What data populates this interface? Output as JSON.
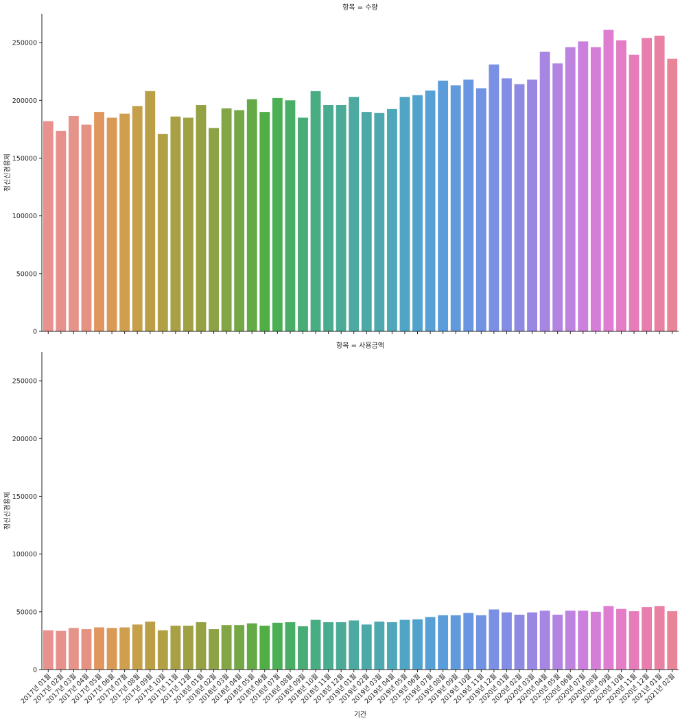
{
  "chart_data": {
    "type": "bar",
    "xlabel": "기간",
    "ylabel": "정신신경용제",
    "ylim": [
      0,
      275000
    ],
    "yticks": [
      0,
      50000,
      100000,
      150000,
      200000,
      250000
    ],
    "grid": false,
    "legend": "none",
    "categories": [
      "2017년 01월",
      "2017년 02월",
      "2017년 03월",
      "2017년 04월",
      "2017년 05월",
      "2017년 06월",
      "2017년 07월",
      "2017년 08월",
      "2017년 09월",
      "2017년 10월",
      "2017년 11월",
      "2017년 12월",
      "2018년 01월",
      "2018년 02월",
      "2018년 03월",
      "2018년 04월",
      "2018년 05월",
      "2018년 06월",
      "2018년 07월",
      "2018년 08월",
      "2018년 09월",
      "2018년 10월",
      "2018년 11월",
      "2018년 12월",
      "2019년 01월",
      "2019년 02월",
      "2019년 03월",
      "2019년 04월",
      "2019년 05월",
      "2019년 06월",
      "2019년 07월",
      "2019년 08월",
      "2019년 09월",
      "2019년 10월",
      "2019년 11월",
      "2019년 12월",
      "2020년 01월",
      "2020년 02월",
      "2020년 03월",
      "2020년 04월",
      "2020년 05월",
      "2020년 06월",
      "2020년 07월",
      "2020년 08월",
      "2020년 09월",
      "2020년 10월",
      "2020년 11월",
      "2020년 12월",
      "2021년 01월",
      "2021년 02월"
    ],
    "panels": [
      {
        "title": "항목 = 수량",
        "values": [
          182000,
          173500,
          186500,
          179000,
          190000,
          185000,
          188500,
          195000,
          208000,
          171000,
          186000,
          185000,
          196000,
          176000,
          193000,
          191500,
          201000,
          190000,
          202000,
          200000,
          185000,
          208000,
          196000,
          196000,
          203000,
          190000,
          189000,
          192500,
          203000,
          204500,
          208500,
          217000,
          213000,
          218000,
          210500,
          231000,
          219000,
          214000,
          218000,
          242000,
          232000,
          246000,
          251000,
          246000,
          261000,
          252000,
          239500,
          254000,
          256000,
          236000
        ]
      },
      {
        "title": "항목 = 사용금액",
        "values": [
          34000,
          33500,
          36000,
          35000,
          36500,
          36000,
          36500,
          39000,
          41500,
          34000,
          38000,
          38000,
          41000,
          35000,
          38500,
          38500,
          40000,
          38000,
          40500,
          41000,
          37500,
          43000,
          41000,
          41000,
          42500,
          39000,
          41500,
          41000,
          43000,
          43500,
          45500,
          47000,
          47000,
          49000,
          47000,
          52000,
          49500,
          47500,
          49500,
          51000,
          47500,
          51000,
          51000,
          50000,
          55000,
          52500,
          50500,
          54000,
          55000,
          50500
        ]
      }
    ],
    "colors": [
      "#e8918e",
      "#e8918c",
      "#e59489",
      "#e49382",
      "#e0965d",
      "#d99a55",
      "#cf9f4f",
      "#c59f4a",
      "#bb9f46",
      "#b2a045",
      "#a9a045",
      "#a0a044",
      "#96a144",
      "#8da245",
      "#82a645",
      "#74a846",
      "#64ab47",
      "#51ae46",
      "#4aaf55",
      "#48ad65",
      "#47ad76",
      "#49ad84",
      "#4aac8e",
      "#4bab97",
      "#4caaa0",
      "#4da9a7",
      "#4ea8b0",
      "#4fa7ba",
      "#50a5c4",
      "#52a2ce",
      "#56a0d5",
      "#5b9cda",
      "#6199dd",
      "#6896e0",
      "#7093e2",
      "#7990e4",
      "#838de3",
      "#8e8ae3",
      "#9a87e3",
      "#a685e3",
      "#b283e1",
      "#be82df",
      "#ca80dc",
      "#d57ed8",
      "#df7dd1",
      "#e37dc5",
      "#e67dba",
      "#e87eae",
      "#e881a3",
      "#e88598"
    ]
  }
}
